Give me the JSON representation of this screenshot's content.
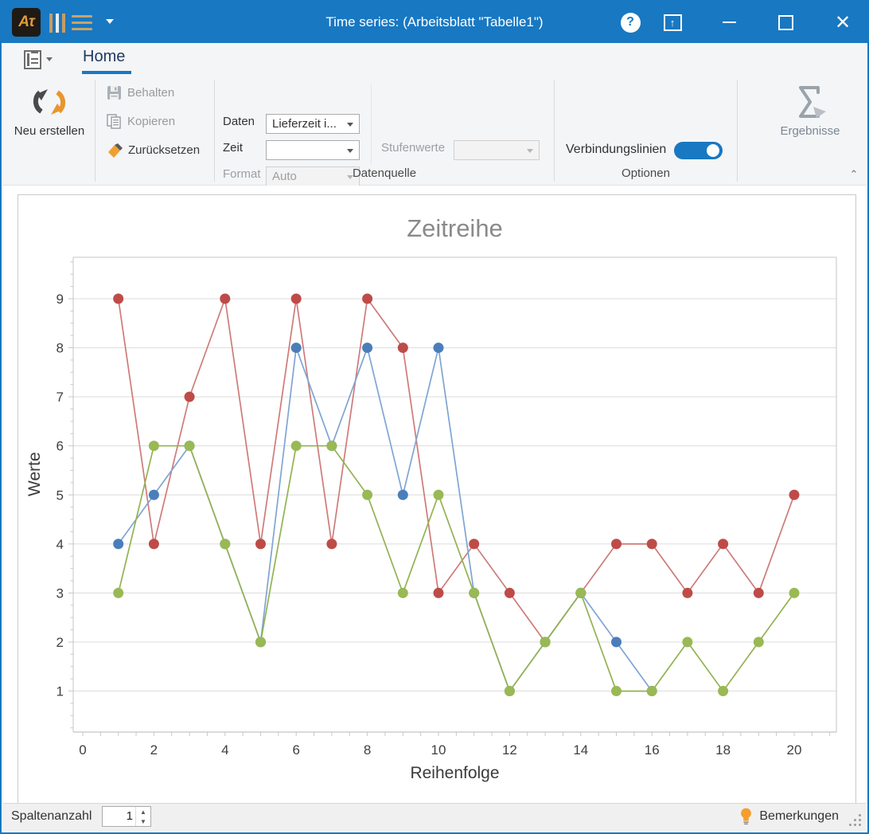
{
  "window": {
    "title": "Time series:  (Arbeitsblatt \"Tabelle1\")"
  },
  "ribbon": {
    "tab_home": "Home",
    "new_button": "Neu erstellen",
    "keep_button": "Behalten",
    "copy_button": "Kopieren",
    "reset_button": "Zurücksetzen",
    "daten_label": "Daten",
    "daten_value": "Lieferzeit i...",
    "zeit_label": "Zeit",
    "zeit_value": "",
    "format_label": "Format",
    "format_value": "Auto",
    "stufenwerte_label": "Stufenwerte",
    "stufenwerte_value": "",
    "group_datenquelle": "Datenquelle",
    "verbindungslinien_label": "Verbindungslinien",
    "verbindungslinien_state": "on",
    "group_optionen": "Optionen",
    "ergebnisse_button": "Ergebnisse"
  },
  "statusbar": {
    "spaltenanzahl_label": "Spaltenanzahl",
    "spaltenanzahl_value": "1",
    "bemerkungen_label": "Bemerkungen"
  },
  "chart_data": {
    "type": "line",
    "title": "Zeitreihe",
    "xlabel": "Reihenfolge",
    "ylabel": "Werte",
    "grid": "horizontal-only",
    "legend": "none",
    "xlim": [
      -0.3,
      21.2
    ],
    "ylim": [
      0.15,
      9.85
    ],
    "x_tick_labels": [
      0,
      2,
      4,
      6,
      8,
      10,
      12,
      14,
      16,
      18,
      20
    ],
    "y_tick_labels": [
      1,
      2,
      3,
      4,
      5,
      6,
      7,
      8,
      9
    ],
    "x": [
      1,
      2,
      3,
      4,
      5,
      6,
      7,
      8,
      9,
      10,
      11,
      12,
      13,
      14,
      15,
      16,
      17,
      18,
      19,
      20
    ],
    "series": [
      {
        "name": "series-red",
        "marker_color": "#BE4B48",
        "line_color": "#CE7B79",
        "values": [
          9,
          4,
          7,
          9,
          4,
          9,
          4,
          9,
          8,
          3,
          4,
          3,
          2,
          3,
          4,
          4,
          3,
          4,
          3,
          5
        ]
      },
      {
        "name": "series-blue",
        "marker_color": "#4A7EBB",
        "line_color": "#7FA5D2",
        "values": [
          4,
          5,
          6,
          4,
          2,
          8,
          6,
          8,
          5,
          8,
          3,
          1,
          2,
          3,
          2,
          1,
          null,
          null,
          null,
          null
        ]
      },
      {
        "name": "series-green",
        "marker_color": "#98B954",
        "line_color": "#93B252",
        "values": [
          3,
          6,
          6,
          4,
          2,
          6,
          6,
          5,
          3,
          5,
          3,
          1,
          2,
          3,
          1,
          1,
          2,
          1,
          2,
          3
        ]
      }
    ]
  }
}
